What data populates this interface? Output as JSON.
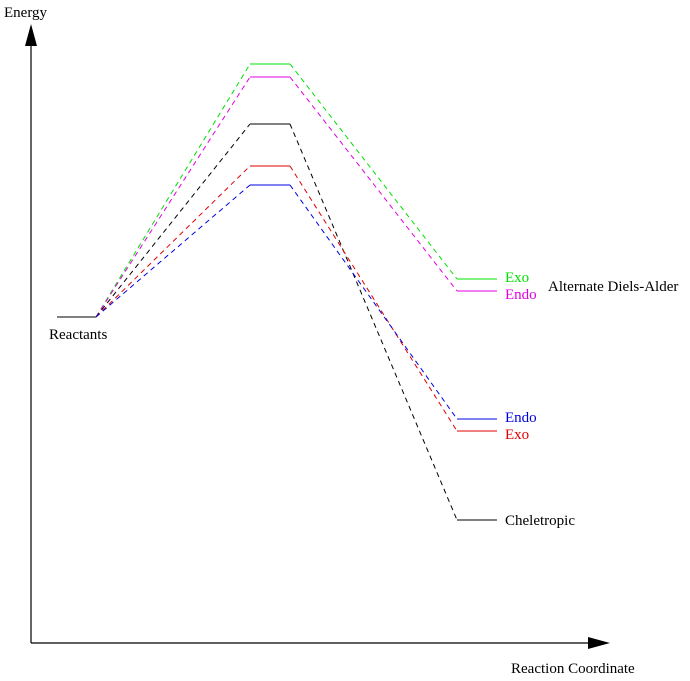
{
  "axes": {
    "y_label": "Energy",
    "x_label": "Reaction Coordinate",
    "color": "#000000"
  },
  "reactants": {
    "label": "Reactants",
    "color": "#000000"
  },
  "group_label": "Alternate Diels-Alder",
  "pathways": [
    {
      "id": "alt-exo",
      "label": "Exo",
      "color": "#00e000"
    },
    {
      "id": "alt-endo",
      "label": "Endo",
      "color": "#e000e0"
    },
    {
      "id": "cheletropic",
      "label": "Cheletropic",
      "color": "#000000"
    },
    {
      "id": "exo",
      "label": "Exo",
      "color": "#e00000"
    },
    {
      "id": "endo",
      "label": "Endo",
      "color": "#0000e0"
    }
  ]
}
